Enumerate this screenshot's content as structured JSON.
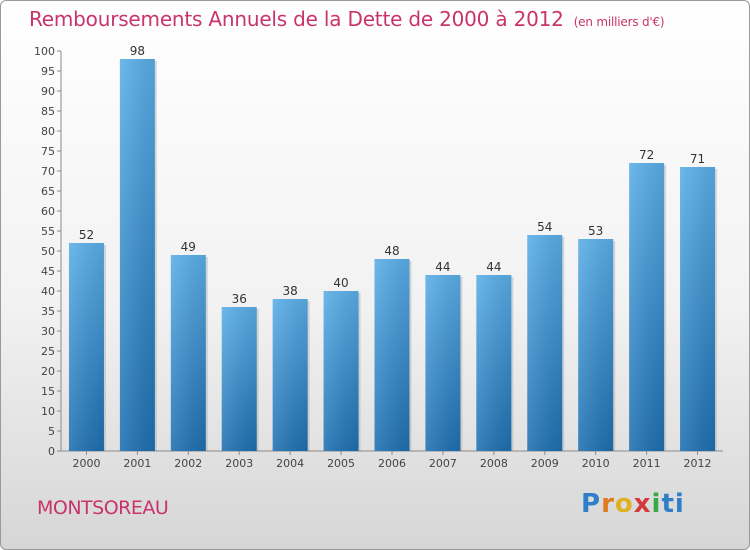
{
  "title": "Remboursements Annuels de la Dette de 2000 à 2012",
  "unit": "(en milliers d'€)",
  "commune": "MONTSOREAU",
  "logo": {
    "letters": [
      "P",
      "r",
      "o",
      "x",
      "i",
      "ti"
    ]
  },
  "colors": {
    "title": "#c8346b",
    "bar_top": "#5aaee8",
    "bar_bottom": "#1e6fb0"
  },
  "chart_data": {
    "type": "bar",
    "title": "Remboursements Annuels de la Dette de 2000 à 2012",
    "subtitle": "(en milliers d'€)",
    "categories": [
      "2000",
      "2001",
      "2002",
      "2003",
      "2004",
      "2005",
      "2006",
      "2007",
      "2008",
      "2009",
      "2010",
      "2011",
      "2012"
    ],
    "values": [
      52,
      98,
      49,
      36,
      38,
      40,
      48,
      44,
      44,
      54,
      53,
      72,
      71
    ],
    "ylim": [
      0,
      100
    ],
    "ytick_step": 5,
    "grid": false,
    "data_labels": true
  }
}
